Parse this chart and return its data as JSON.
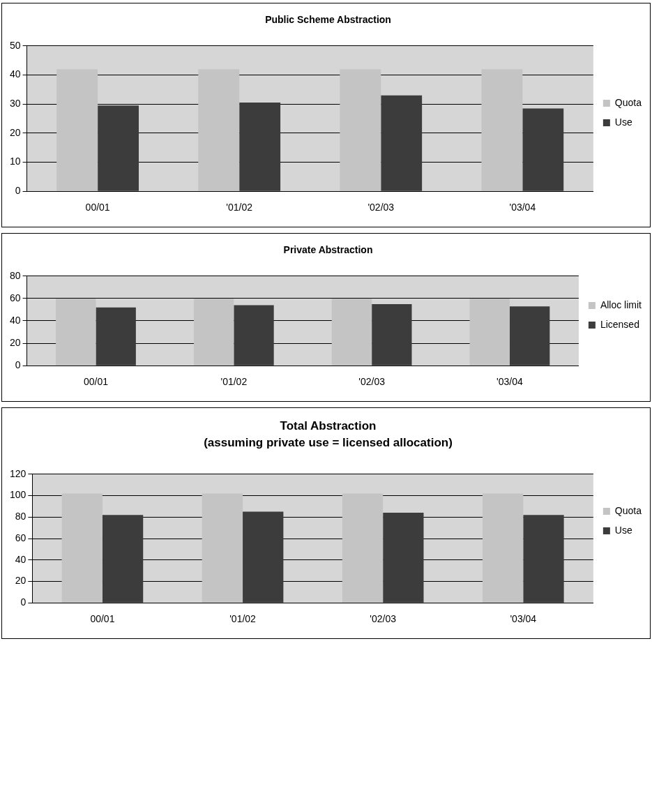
{
  "chart_data": [
    {
      "type": "bar",
      "title": "Public Scheme Abstraction",
      "categories": [
        "00/01",
        "'01/02",
        "'02/03",
        "'03/04"
      ],
      "series": [
        {
          "name": "Quota",
          "color": "#c4c4c4",
          "values": [
            42,
            42,
            42,
            42
          ]
        },
        {
          "name": "Use",
          "color": "#3c3c3c",
          "values": [
            29.5,
            30.5,
            33,
            28.5
          ]
        }
      ],
      "ylim": [
        0,
        50
      ],
      "yticks": [
        0,
        10,
        20,
        30,
        40,
        50
      ],
      "grid": "y",
      "legend": "right"
    },
    {
      "type": "bar",
      "title": "Private Abstraction",
      "categories": [
        "00/01",
        "'01/02",
        "'02/03",
        "'03/04"
      ],
      "series": [
        {
          "name": "Alloc limit",
          "color": "#c4c4c4",
          "values": [
            60,
            60,
            60,
            60
          ]
        },
        {
          "name": "Licensed",
          "color": "#3c3c3c",
          "values": [
            52,
            54,
            55,
            53
          ]
        }
      ],
      "ylim": [
        0,
        80
      ],
      "yticks": [
        0,
        20,
        40,
        60,
        80
      ],
      "grid": "y",
      "legend": "right"
    },
    {
      "type": "bar",
      "title": "Total Abstraction",
      "subtitle": "(assuming private use = licensed allocation)",
      "categories": [
        "00/01",
        "'01/02",
        "'02/03",
        "'03/04"
      ],
      "series": [
        {
          "name": "Quota",
          "color": "#c4c4c4",
          "values": [
            102,
            102,
            102,
            102
          ]
        },
        {
          "name": "Use",
          "color": "#3c3c3c",
          "values": [
            82,
            85,
            84,
            82
          ]
        }
      ],
      "ylim": [
        0,
        120
      ],
      "yticks": [
        0,
        20,
        40,
        60,
        80,
        100,
        120
      ],
      "grid": "y",
      "legend": "right"
    }
  ]
}
